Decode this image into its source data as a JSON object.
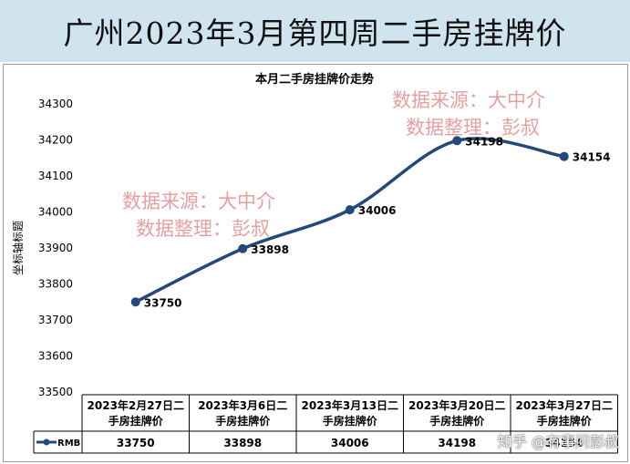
{
  "banner": {
    "title": "广州2023年3月第四周二手房挂牌价"
  },
  "watermarks": [
    {
      "line1": "数据来源：大中介",
      "line2": "数据整理：彭叔"
    },
    {
      "line1": "数据来源：大中介",
      "line2": "数据整理：彭叔"
    }
  ],
  "zhihu_mark": "知乎 @有事问彭叔",
  "chart_data": {
    "type": "line",
    "title": "本月二手房挂牌价走势",
    "ylabel": "坐标轴标题",
    "xlabel": "",
    "ylim": [
      33500,
      34300
    ],
    "ytick_step": 100,
    "grid": false,
    "categories": [
      "2023年2月27日二手房挂牌价",
      "2023年3月6日二手房挂牌价",
      "2023年3月13日二手房挂牌价",
      "2023年3月20日二手房挂牌价",
      "2023年3月27日二手房挂牌价"
    ],
    "series": [
      {
        "name": "RMB",
        "values": [
          33750,
          33898,
          34006,
          34198,
          34154
        ],
        "color": "#23497a"
      }
    ],
    "data_table": true
  }
}
